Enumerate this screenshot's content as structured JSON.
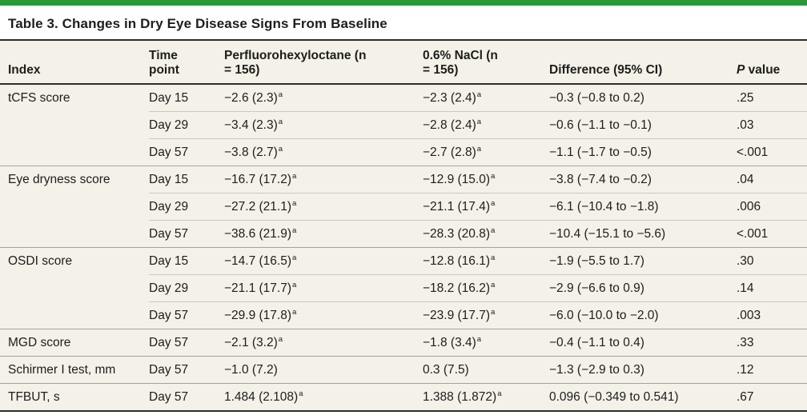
{
  "title": "Table 3. Changes in Dry Eye Disease Signs From Baseline",
  "colors": {
    "accent_green": "#2b9939",
    "table_bg": "#f3f1e8",
    "rule_dark": "#2e2d2b",
    "line_group": "#a6a49a",
    "line_inner": "#cbc9be",
    "text": "#1e1d1b"
  },
  "table": {
    "headers": {
      "index": "Index",
      "time": "Time point",
      "pfh": "Perfluorohexyloctane (n = 156)",
      "nacl": "0.6% NaCl (n = 156)",
      "diff": "Difference (95% CI)",
      "p_italic": "P",
      "p_rest": " value"
    },
    "footnote_marker": "a",
    "rows": [
      {
        "index": "tCFS score",
        "time": "Day 15",
        "pfh": "−2.6 (2.3)",
        "pfh_sup": "a",
        "nacl": "−2.3 (2.4)",
        "nacl_sup": "a",
        "diff": "−0.3 (−0.8 to 0.2)",
        "p": ".25"
      },
      {
        "index": "",
        "time": "Day 29",
        "pfh": "−3.4 (2.3)",
        "pfh_sup": "a",
        "nacl": "−2.8 (2.4)",
        "nacl_sup": "a",
        "diff": "−0.6 (−1.1 to −0.1)",
        "p": ".03"
      },
      {
        "index": "",
        "time": "Day 57",
        "pfh": "−3.8 (2.7)",
        "pfh_sup": "a",
        "nacl": "−2.7 (2.8)",
        "nacl_sup": "a",
        "diff": "−1.1 (−1.7 to −0.5)",
        "p": "<.001"
      },
      {
        "index": "Eye dryness score",
        "time": "Day 15",
        "pfh": "−16.7 (17.2)",
        "pfh_sup": "a",
        "nacl": "−12.9 (15.0)",
        "nacl_sup": "a",
        "diff": "−3.8 (−7.4 to −0.2)",
        "p": ".04"
      },
      {
        "index": "",
        "time": "Day 29",
        "pfh": "−27.2 (21.1)",
        "pfh_sup": "a",
        "nacl": "−21.1 (17.4)",
        "nacl_sup": "a",
        "diff": "−6.1 (−10.4 to −1.8)",
        "p": ".006"
      },
      {
        "index": "",
        "time": "Day 57",
        "pfh": "−38.6 (21.9)",
        "pfh_sup": "a",
        "nacl": "−28.3 (20.8)",
        "nacl_sup": "a",
        "diff": "−10.4 (−15.1 to −5.6)",
        "p": "<.001"
      },
      {
        "index": "OSDI score",
        "time": "Day 15",
        "pfh": "−14.7 (16.5)",
        "pfh_sup": "a",
        "nacl": "−12.8 (16.1)",
        "nacl_sup": "a",
        "diff": "−1.9 (−5.5 to 1.7)",
        "p": ".30"
      },
      {
        "index": "",
        "time": "Day 29",
        "pfh": "−21.1 (17.7)",
        "pfh_sup": "a",
        "nacl": "−18.2 (16.2)",
        "nacl_sup": "a",
        "diff": "−2.9 (−6.6 to 0.9)",
        "p": ".14"
      },
      {
        "index": "",
        "time": "Day 57",
        "pfh": "−29.9 (17.8)",
        "pfh_sup": "a",
        "nacl": "−23.9 (17.7)",
        "nacl_sup": "a",
        "diff": "−6.0 (−10.0 to −2.0)",
        "p": ".003"
      },
      {
        "index": "MGD score",
        "time": "Day 57",
        "pfh": "−2.1 (3.2)",
        "pfh_sup": "a",
        "nacl": "−1.8 (3.4)",
        "nacl_sup": "a",
        "diff": "−0.4 (−1.1 to 0.4)",
        "p": ".33"
      },
      {
        "index": "Schirmer I test, mm",
        "time": "Day 57",
        "pfh": "−1.0 (7.2)",
        "nacl": "0.3 (7.5)",
        "diff": "−1.3 (−2.9 to 0.3)",
        "p": ".12"
      },
      {
        "index": "TFBUT, s",
        "time": "Day 57",
        "pfh": "1.484 (2.108)",
        "pfh_sup": "a",
        "nacl": "1.388 (1.872)",
        "nacl_sup": "a",
        "diff": "0.096 (−0.349 to 0.541)",
        "p": ".67"
      }
    ]
  }
}
